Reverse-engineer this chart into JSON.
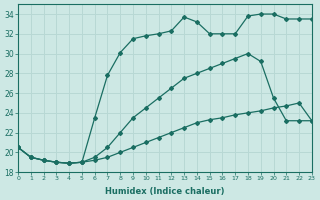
{
  "xlabel": "Humidex (Indice chaleur)",
  "xlim": [
    0,
    23
  ],
  "ylim": [
    18,
    35
  ],
  "yticks": [
    18,
    20,
    22,
    24,
    26,
    28,
    30,
    32,
    34
  ],
  "xticks": [
    0,
    1,
    2,
    3,
    4,
    5,
    6,
    7,
    8,
    9,
    10,
    11,
    12,
    13,
    14,
    15,
    16,
    17,
    18,
    19,
    20,
    21,
    22,
    23
  ],
  "bg_color": "#cde8e4",
  "line_color": "#1a6e62",
  "grid_color": "#b8d8d4",
  "curve1_x": [
    0,
    1,
    2,
    3,
    4,
    5,
    6,
    7,
    8,
    9,
    10,
    11,
    12,
    13,
    14,
    15,
    16,
    17,
    18,
    19,
    20,
    21,
    22,
    23
  ],
  "curve1_y": [
    20.5,
    19.5,
    19.2,
    19.0,
    18.9,
    19.0,
    19.2,
    19.5,
    20.0,
    20.5,
    21.0,
    21.5,
    22.0,
    22.5,
    23.0,
    23.3,
    23.5,
    23.8,
    24.0,
    24.2,
    24.5,
    24.7,
    25.0,
    23.2
  ],
  "curve2_x": [
    0,
    1,
    2,
    3,
    4,
    5,
    6,
    7,
    8,
    9,
    10,
    11,
    12,
    13,
    14,
    15,
    16,
    17,
    18,
    19,
    20,
    21,
    22,
    23
  ],
  "curve2_y": [
    20.5,
    19.5,
    19.2,
    19.0,
    18.9,
    19.0,
    19.5,
    20.5,
    22.0,
    23.5,
    24.5,
    25.5,
    26.5,
    27.5,
    28.0,
    28.5,
    29.0,
    29.5,
    30.0,
    29.2,
    25.5,
    23.2,
    23.2,
    23.2
  ],
  "curve3_x": [
    0,
    1,
    2,
    3,
    4,
    5,
    6,
    7,
    8,
    9,
    10,
    11,
    12,
    13,
    14,
    15,
    16,
    17,
    18,
    19,
    20,
    21,
    22,
    23
  ],
  "curve3_y": [
    20.5,
    19.5,
    19.2,
    19.0,
    18.9,
    19.0,
    23.5,
    27.8,
    30.1,
    31.5,
    31.8,
    32.0,
    32.3,
    33.7,
    33.2,
    32.0,
    32.0,
    32.0,
    33.8,
    34.0,
    34.0,
    33.5,
    33.5,
    33.5
  ]
}
